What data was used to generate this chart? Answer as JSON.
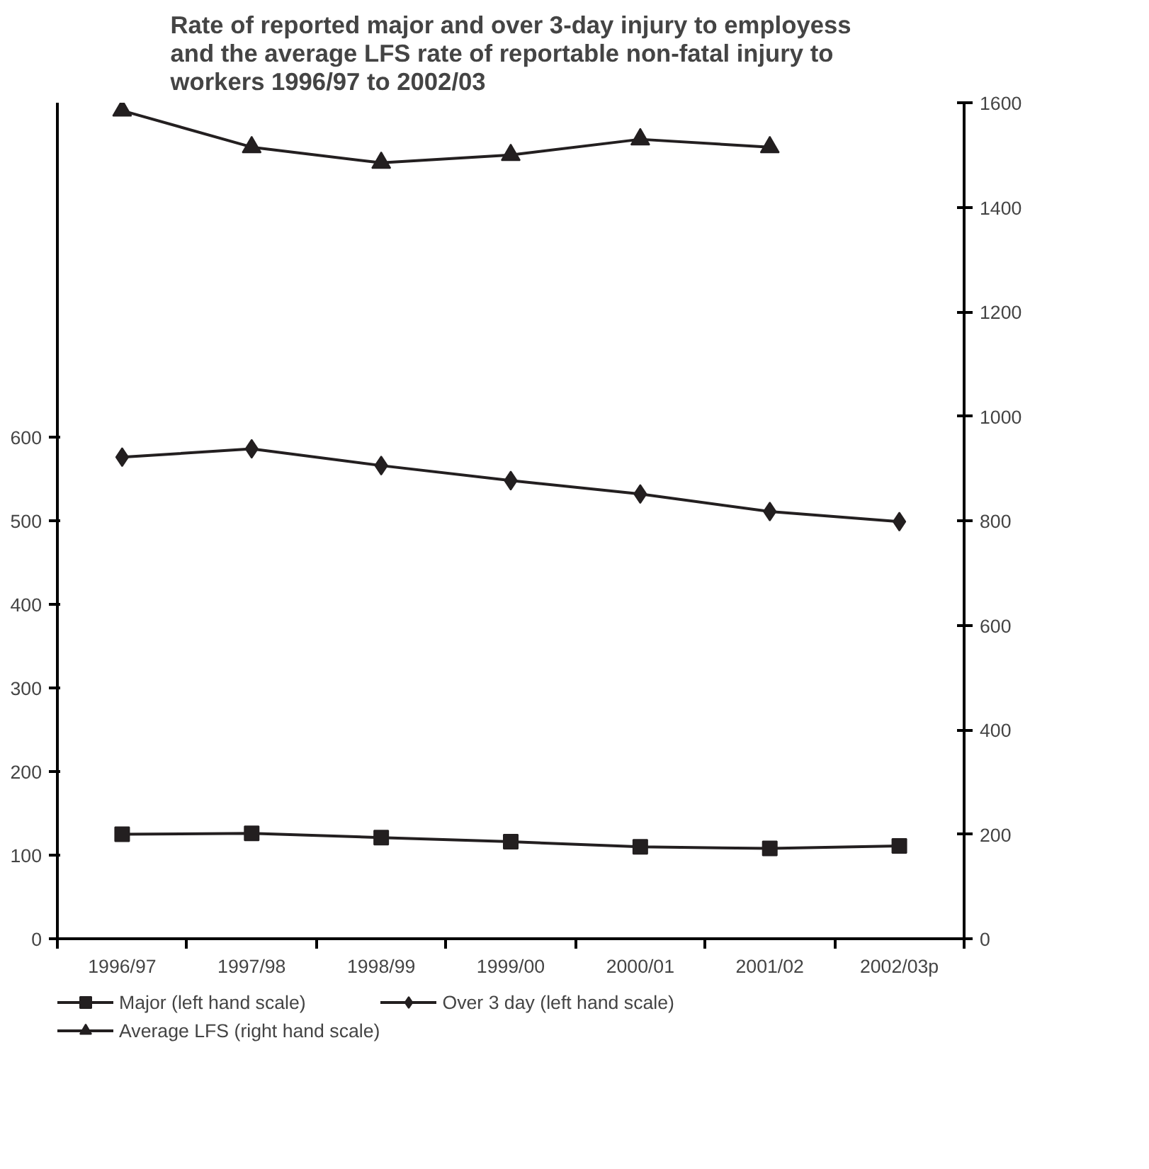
{
  "chart_data": {
    "type": "line",
    "title": "Rate of reported major and over 3-day injury to employess\nand the average LFS rate of reportable non-fatal injury to\nworkers 1996/97 to 2002/03",
    "categories": [
      "1996/97",
      "1997/98",
      "1998/99",
      "1999/00",
      "2000/01",
      "2001/02",
      "2002/03p"
    ],
    "series": [
      {
        "name": "Major (left hand scale)",
        "color": "#231f20",
        "marker": "square",
        "values": [
          125,
          126,
          121,
          116,
          110,
          108,
          111
        ]
      },
      {
        "name": "Over 3 day (left hand scale)",
        "color": "#231f20",
        "marker": "diamond",
        "values": [
          576,
          586,
          566,
          548,
          532,
          511,
          499
        ]
      },
      {
        "name": "Average LFS (right hand scale)",
        "color": "#231f20",
        "marker": "triangle",
        "axis": "y2",
        "values": [
          1585,
          1515,
          1485,
          1500,
          1530,
          1515,
          null
        ]
      }
    ],
    "ylim": [
      0,
      1000
    ],
    "yticks": [
      0,
      100,
      200,
      300,
      400,
      500,
      600
    ],
    "y2lim": [
      0,
      1600
    ],
    "y2ticks": [
      0,
      200,
      400,
      600,
      800,
      1000,
      1200,
      1400,
      1600
    ],
    "grid": false,
    "legend": "bottom",
    "line_style": "solid"
  }
}
